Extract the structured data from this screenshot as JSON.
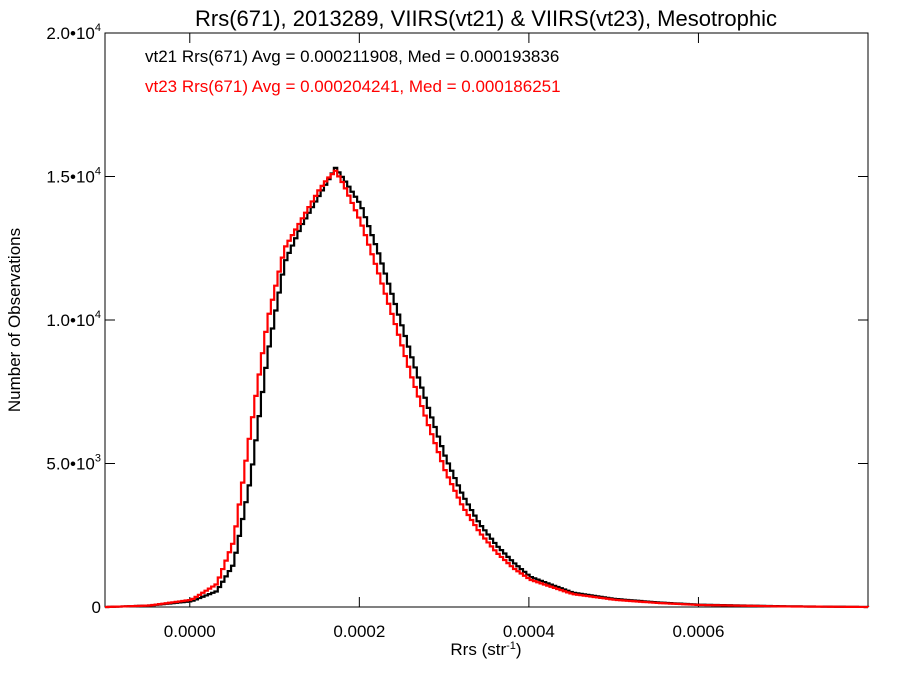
{
  "chart_data": {
    "type": "line",
    "title": "Rrs(671), 2013289, VIIRS(vt21) & VIIRS(vt23), Mesotrophic",
    "xlabel": "Rrs (str⁻¹)",
    "ylabel": "Number of Observations",
    "xlim": [
      -0.0001,
      0.0008
    ],
    "ylim": [
      0,
      20000
    ],
    "x_ticks": [
      0.0,
      0.0002,
      0.0004,
      0.0006
    ],
    "x_tick_labels": [
      "0.0000",
      "0.0002",
      "0.0004",
      "0.0006"
    ],
    "y_ticks": [
      0,
      5000,
      10000,
      15000,
      20000
    ],
    "y_tick_labels": [
      {
        "mantissa": "0",
        "exp": ""
      },
      {
        "mantissa": "5.0•1",
        "exp": "3"
      },
      {
        "mantissa": "1.0•1",
        "exp": "4"
      },
      {
        "mantissa": "1.5•1",
        "exp": "4"
      },
      {
        "mantissa": "2.0•1",
        "exp": "4"
      }
    ],
    "grid": false,
    "legend_position": "top-left",
    "series": [
      {
        "name": "vt21",
        "label": "vt21 Rrs(671) Avg = 0.000211908, Med = 0.000193836",
        "color": "#000000",
        "x": [
          -0.0001,
          -5e-05,
          0.0,
          3e-05,
          5e-05,
          7e-05,
          9e-05,
          0.00011,
          0.00013,
          0.00015,
          0.00016,
          0.00017,
          0.00018,
          0.0002,
          0.00022,
          0.00024,
          0.00026,
          0.00028,
          0.0003,
          0.00032,
          0.00034,
          0.00036,
          0.00038,
          0.0004,
          0.00045,
          0.0005,
          0.00055,
          0.0006,
          0.0007,
          0.0008
        ],
        "y": [
          0,
          50,
          200,
          550,
          1500,
          4500,
          8800,
          12000,
          13300,
          14300,
          14800,
          15300,
          14900,
          14000,
          12400,
          10600,
          8700,
          6900,
          5200,
          3900,
          2900,
          2150,
          1550,
          1050,
          500,
          280,
          160,
          80,
          25,
          0
        ]
      },
      {
        "name": "vt23",
        "label": "vt23 Rrs(671) Avg = 0.000204241, Med = 0.000186251",
        "color": "#ff0000",
        "x": [
          -0.0001,
          -5e-05,
          0.0,
          3e-05,
          5e-05,
          7e-05,
          9e-05,
          0.00011,
          0.00013,
          0.00015,
          0.00016,
          0.00017,
          0.00018,
          0.0002,
          0.00022,
          0.00024,
          0.00026,
          0.00028,
          0.0003,
          0.00032,
          0.00034,
          0.00036,
          0.00038,
          0.0004,
          0.00045,
          0.0005,
          0.00055,
          0.0006,
          0.0007,
          0.0008
        ],
        "y": [
          0,
          50,
          250,
          800,
          2300,
          6200,
          10000,
          12500,
          13500,
          14500,
          14900,
          15200,
          14700,
          13400,
          11700,
          9900,
          8000,
          6300,
          4700,
          3500,
          2600,
          1900,
          1350,
          950,
          450,
          250,
          140,
          70,
          20,
          0
        ]
      }
    ]
  }
}
